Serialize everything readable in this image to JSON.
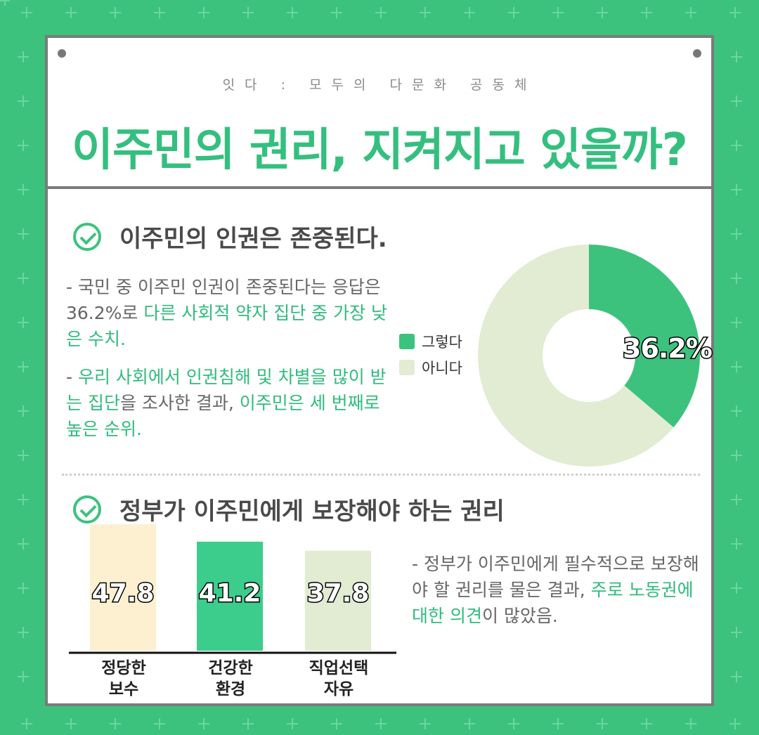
{
  "colors": {
    "background": "#3cc27d",
    "accent": "#35bf7f",
    "border": "#7b7b7b",
    "pie_yes": "#3cc27d",
    "pie_no": "#e1ecd3",
    "bar_1": "#fcf0d0",
    "bar_2": "#3ccd8d",
    "bar_3": "#e1ecd3"
  },
  "header": {
    "subtitle": "잇다 : 모두의 다문화 공동체",
    "title": "이주민의 권리, 지켜지고 있을까?"
  },
  "section1": {
    "icon": "check-circle-icon",
    "heading": "이주민의 인권은 존중된다.",
    "para1": [
      {
        "text": "- 국민 중 이주민 인권이 존중된다는 응답은 36.2%로 ",
        "hl": false
      },
      {
        "text": "다른 사회적 약자 집단 중 가장 낮은 수치.",
        "hl": true
      }
    ],
    "para2": [
      {
        "text": "- ",
        "hl": false
      },
      {
        "text": "우리 사회에서 인권침해 및 차별을 많이 받는 집단",
        "hl": true
      },
      {
        "text": "을 조사한 결과, ",
        "hl": false
      },
      {
        "text": "이주민은 세 번째로 높은 순위.",
        "hl": true
      }
    ],
    "legend": [
      "그렇다",
      "아니다"
    ],
    "donut_label": "36.2%"
  },
  "section2": {
    "icon": "check-circle-icon",
    "heading": "정부가 이주민에게 보장해야 하는 권리",
    "para": [
      {
        "text": "- 정부가 이주민에게 필수적으로 보장해야 할 권리를 물은 결과, ",
        "hl": false
      },
      {
        "text": "주로 노동권에 대한 의견",
        "hl": true
      },
      {
        "text": "이 많았음.",
        "hl": false
      }
    ]
  },
  "chart_data": [
    {
      "type": "pie",
      "categories": [
        "그렇다",
        "아니다"
      ],
      "values": [
        36.2,
        63.8
      ],
      "data_labels": [
        "36.2%"
      ],
      "legend": "left"
    },
    {
      "type": "bar",
      "categories": [
        "정당한 보수",
        "건강한 환경",
        "직업선택 자유"
      ],
      "category_lines": [
        [
          "정당한",
          "보수"
        ],
        [
          "건강한",
          "환경"
        ],
        [
          "직업선택",
          "자유"
        ]
      ],
      "values": [
        47.8,
        41.2,
        37.8
      ],
      "data_labels": [
        "47.8",
        "41.2",
        "37.8"
      ]
    }
  ]
}
